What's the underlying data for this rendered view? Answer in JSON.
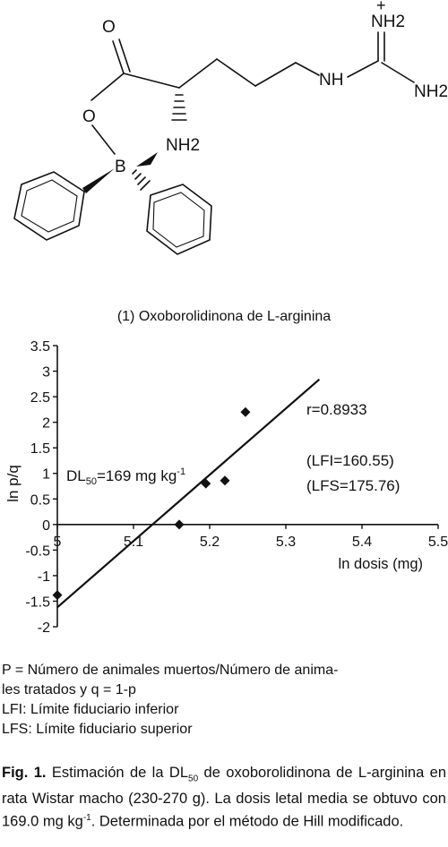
{
  "structure": {
    "atom_O_carbonyl": "O",
    "atom_O_ring": "O",
    "atom_B": "B",
    "atom_NH2_alpha": "NH2",
    "atom_NH": "NH",
    "atom_NH2_plus": "NH2",
    "atom_NH2_right": "NH2",
    "charge": "+"
  },
  "compound_label": "(1) Oxoborolidinona de L-arginina",
  "chart_data": {
    "type": "scatter",
    "title": "",
    "xlabel": "ln dosis (mg)",
    "ylabel": "ln p/q",
    "xlim": [
      5,
      5.5
    ],
    "ylim": [
      -2,
      3.5
    ],
    "x_ticks": [
      "5",
      "5.1",
      "5.2",
      "5.3",
      "5.4",
      "5.5"
    ],
    "y_ticks": [
      "-2",
      "-1.5",
      "-1",
      "-0.5",
      "0",
      "0.5",
      "1",
      "1.5",
      "2",
      "2.5",
      "3",
      "3.5"
    ],
    "points": [
      {
        "x": 5.0,
        "y": -1.38
      },
      {
        "x": 5.16,
        "y": 0.0
      },
      {
        "x": 5.195,
        "y": 0.8
      },
      {
        "x": 5.22,
        "y": 0.86
      },
      {
        "x": 5.247,
        "y": 2.2
      }
    ],
    "fit_line": {
      "x0": 5.0,
      "y0": -1.62,
      "x1": 5.344,
      "y1": 2.84
    },
    "grid": false,
    "annotations": {
      "r": "r=0.8933",
      "lfi": "(LFI=160.55)",
      "lfs": "(LFS=175.76)",
      "dl_prefix": "DL",
      "dl_sub": "50",
      "dl_value": "=169 mg kg",
      "dl_sup": "-1"
    }
  },
  "notes": {
    "line1": "P = Número de animales muertos/Número de anima-",
    "line2": "les tratados y q = 1-p",
    "line3": "LFI: Límite fiduciario inferior",
    "line4": "LFS: Límite fiduciario superior"
  },
  "caption": {
    "label": "Fig. 1.",
    "text1": " Estimación de la DL",
    "sub": "50",
    "text2": " de oxoborolidinona de L-arginina en rata Wistar macho (230-270 g). La dosis letal media se obtuvo con 169.0 mg kg",
    "sup": "-1",
    "text3": ". Determinada por el método de Hill modificado."
  }
}
